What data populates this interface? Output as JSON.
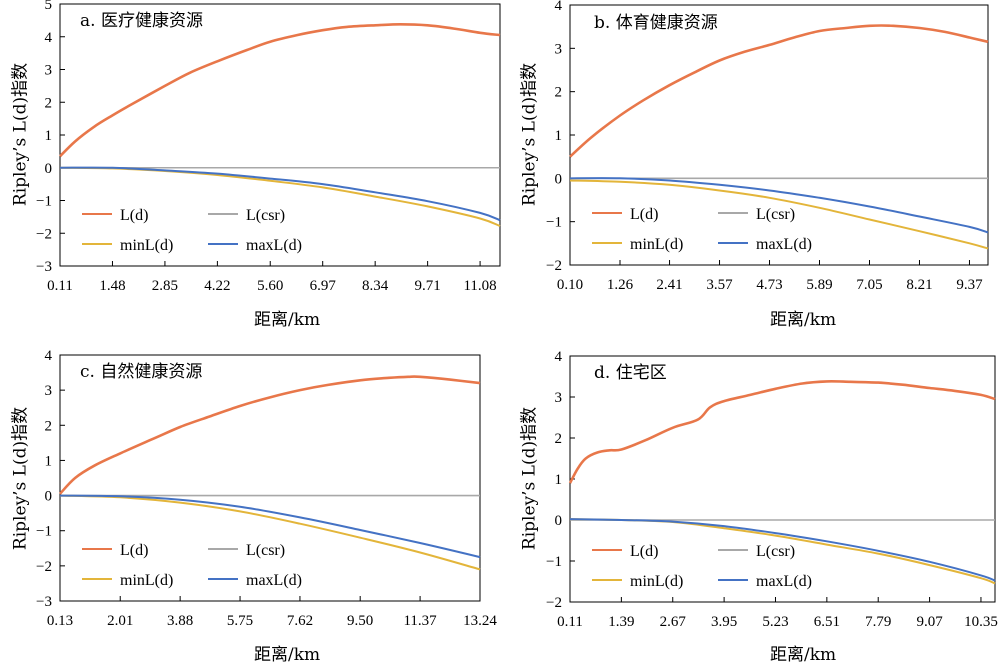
{
  "colors": {
    "L": "#E8774A",
    "csr": "#A8A8A8",
    "min": "#E3B53A",
    "max": "#4472C4"
  },
  "xlabel": "距离/km",
  "ylabel": "Ripley’s L(d)指数",
  "legend": [
    "L(d)",
    "L(csr)",
    "minL(d)",
    "maxL(d)"
  ],
  "chart_data": [
    {
      "type": "line",
      "title": "a. 医疗健康资源",
      "xlabel": "距离/km",
      "ylabel": "Ripley’s L(d)指数",
      "x_ticks": [
        "0.11",
        "1.48",
        "2.85",
        "4.22",
        "5.60",
        "6.97",
        "8.34",
        "9.71",
        "11.08"
      ],
      "xlim": [
        0.11,
        11.6
      ],
      "ylim": [
        -3,
        5
      ],
      "y_ticks": [
        -3,
        -2,
        -1,
        0,
        1,
        2,
        3,
        4,
        5
      ],
      "legend": "lower-left",
      "series": [
        {
          "name": "L(d)",
          "x": [
            0.11,
            0.5,
            1.0,
            1.48,
            2.0,
            2.85,
            3.5,
            4.22,
            5.0,
            5.6,
            6.3,
            6.97,
            7.6,
            8.34,
            9.0,
            9.71,
            10.4,
            11.08,
            11.6
          ],
          "y": [
            0.35,
            0.8,
            1.25,
            1.6,
            1.95,
            2.5,
            2.9,
            3.25,
            3.6,
            3.85,
            4.05,
            4.2,
            4.3,
            4.35,
            4.38,
            4.35,
            4.25,
            4.12,
            4.05
          ]
        },
        {
          "name": "L(csr)",
          "x": [
            0.11,
            11.6
          ],
          "y": [
            0,
            0
          ]
        },
        {
          "name": "minL(d)",
          "x": [
            0.11,
            1.48,
            2.85,
            4.22,
            5.6,
            6.97,
            8.34,
            9.71,
            11.08,
            11.6
          ],
          "y": [
            0.0,
            -0.02,
            -0.1,
            -0.22,
            -0.4,
            -0.6,
            -0.88,
            -1.18,
            -1.55,
            -1.78
          ]
        },
        {
          "name": "maxL(d)",
          "x": [
            0.11,
            1.48,
            2.85,
            4.22,
            5.6,
            6.97,
            8.34,
            9.71,
            11.08,
            11.6
          ],
          "y": [
            0.0,
            0.0,
            -0.08,
            -0.18,
            -0.33,
            -0.5,
            -0.75,
            -1.02,
            -1.38,
            -1.6
          ]
        }
      ]
    },
    {
      "type": "line",
      "title": "b. 体育健康资源",
      "xlabel": "距离/km",
      "ylabel": "Ripley’s L(d)指数",
      "x_ticks": [
        "0.10",
        "1.26",
        "2.41",
        "3.57",
        "4.73",
        "5.89",
        "7.05",
        "8.21",
        "9.37"
      ],
      "xlim": [
        0.1,
        9.8
      ],
      "ylim": [
        -2,
        4
      ],
      "y_ticks": [
        -2,
        -1,
        0,
        1,
        2,
        3,
        4
      ],
      "legend": "lower-left",
      "series": [
        {
          "name": "L(d)",
          "x": [
            0.1,
            0.6,
            1.26,
            1.8,
            2.41,
            3.0,
            3.57,
            4.15,
            4.73,
            5.3,
            5.89,
            6.5,
            7.05,
            7.6,
            8.21,
            8.8,
            9.37,
            9.8
          ],
          "y": [
            0.5,
            0.95,
            1.45,
            1.8,
            2.15,
            2.45,
            2.72,
            2.92,
            3.08,
            3.25,
            3.4,
            3.47,
            3.52,
            3.52,
            3.47,
            3.38,
            3.25,
            3.15
          ]
        },
        {
          "name": "L(csr)",
          "x": [
            0.1,
            9.8
          ],
          "y": [
            0,
            0
          ]
        },
        {
          "name": "minL(d)",
          "x": [
            0.1,
            1.26,
            2.41,
            3.57,
            4.73,
            5.89,
            7.05,
            8.21,
            9.37,
            9.8
          ],
          "y": [
            -0.05,
            -0.08,
            -0.15,
            -0.28,
            -0.45,
            -0.68,
            -0.95,
            -1.22,
            -1.5,
            -1.62
          ]
        },
        {
          "name": "maxL(d)",
          "x": [
            0.1,
            1.26,
            2.41,
            3.57,
            4.73,
            5.89,
            7.05,
            8.21,
            9.37,
            9.8
          ],
          "y": [
            0.0,
            0.0,
            -0.05,
            -0.15,
            -0.28,
            -0.45,
            -0.65,
            -0.88,
            -1.12,
            -1.25
          ]
        }
      ]
    },
    {
      "type": "line",
      "title": "c. 自然健康资源",
      "xlabel": "距离/km",
      "ylabel": "Ripley’s L(d)指数",
      "x_ticks": [
        "0.13",
        "2.01",
        "3.88",
        "5.75",
        "7.62",
        "9.50",
        "11.37",
        "13.24"
      ],
      "xlim": [
        0.13,
        13.24
      ],
      "ylim": [
        -3,
        4
      ],
      "y_ticks": [
        -3,
        -2,
        -1,
        0,
        1,
        2,
        3,
        4
      ],
      "legend": "lower-left",
      "series": [
        {
          "name": "L(d)",
          "x": [
            0.13,
            0.6,
            1.2,
            2.01,
            3.0,
            3.88,
            4.8,
            5.75,
            6.7,
            7.62,
            8.5,
            9.5,
            10.4,
            11.0,
            11.37,
            12.3,
            13.24
          ],
          "y": [
            0.05,
            0.5,
            0.85,
            1.2,
            1.6,
            1.95,
            2.25,
            2.55,
            2.8,
            3.0,
            3.15,
            3.28,
            3.35,
            3.38,
            3.38,
            3.3,
            3.2
          ]
        },
        {
          "name": "L(csr)",
          "x": [
            0.13,
            13.24
          ],
          "y": [
            0,
            0
          ]
        },
        {
          "name": "minL(d)",
          "x": [
            0.13,
            2.01,
            3.88,
            5.75,
            7.62,
            9.5,
            11.37,
            13.24
          ],
          "y": [
            0.0,
            -0.05,
            -0.2,
            -0.45,
            -0.8,
            -1.2,
            -1.62,
            -2.1
          ]
        },
        {
          "name": "maxL(d)",
          "x": [
            0.13,
            2.01,
            3.88,
            5.75,
            7.62,
            9.5,
            11.37,
            13.24
          ],
          "y": [
            0.0,
            -0.02,
            -0.12,
            -0.32,
            -0.62,
            -0.98,
            -1.35,
            -1.75
          ]
        }
      ]
    },
    {
      "type": "line",
      "title": "d. 住宅区",
      "xlabel": "距离/km",
      "ylabel": "Ripley’s L(d)指数",
      "x_ticks": [
        "0.11",
        "1.39",
        "2.67",
        "3.95",
        "5.23",
        "6.51",
        "7.79",
        "9.07",
        "10.35"
      ],
      "xlim": [
        0.11,
        10.7
      ],
      "ylim": [
        -2,
        4
      ],
      "y_ticks": [
        -2,
        -1,
        0,
        1,
        2,
        3,
        4
      ],
      "legend": "lower-left",
      "series": [
        {
          "name": "L(d)",
          "x": [
            0.11,
            0.3,
            0.5,
            0.8,
            1.1,
            1.39,
            2.0,
            2.67,
            3.3,
            3.6,
            3.95,
            4.6,
            5.23,
            5.9,
            6.51,
            7.1,
            7.79,
            8.4,
            9.07,
            9.7,
            10.35,
            10.7
          ],
          "y": [
            0.9,
            1.25,
            1.5,
            1.65,
            1.7,
            1.72,
            1.95,
            2.25,
            2.45,
            2.75,
            2.9,
            3.05,
            3.2,
            3.33,
            3.38,
            3.37,
            3.35,
            3.3,
            3.22,
            3.15,
            3.05,
            2.95
          ]
        },
        {
          "name": "L(csr)",
          "x": [
            0.11,
            10.7
          ],
          "y": [
            0,
            0
          ]
        },
        {
          "name": "minL(d)",
          "x": [
            0.11,
            1.39,
            2.67,
            3.95,
            5.23,
            6.51,
            7.79,
            9.07,
            10.35,
            10.7
          ],
          "y": [
            0.02,
            0.0,
            -0.05,
            -0.2,
            -0.38,
            -0.6,
            -0.82,
            -1.1,
            -1.42,
            -1.55
          ]
        },
        {
          "name": "maxL(d)",
          "x": [
            0.11,
            1.39,
            2.67,
            3.95,
            5.23,
            6.51,
            7.79,
            9.07,
            10.35,
            10.7
          ],
          "y": [
            0.02,
            0.0,
            -0.04,
            -0.15,
            -0.32,
            -0.52,
            -0.75,
            -1.02,
            -1.35,
            -1.48
          ]
        }
      ]
    }
  ]
}
